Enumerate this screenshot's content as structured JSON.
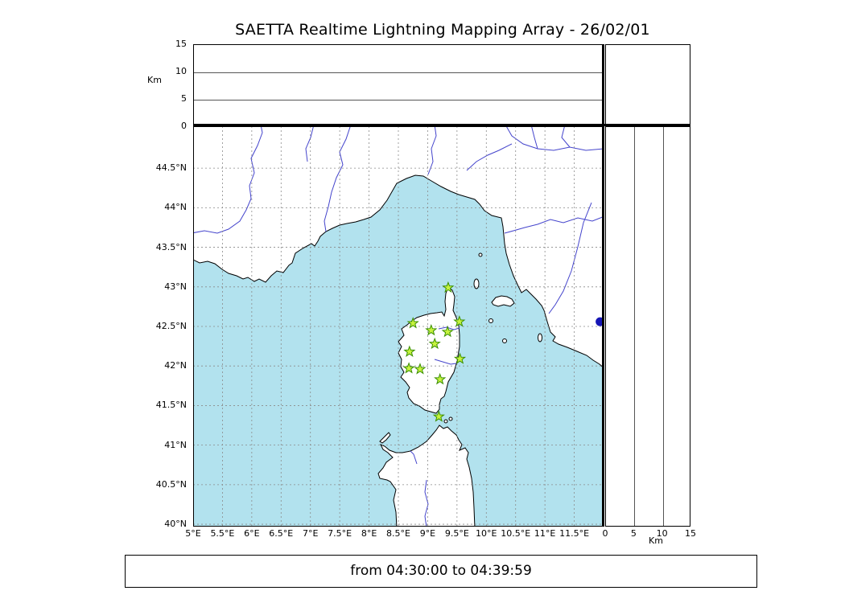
{
  "title": "SAETTA Realtime Lightning Mapping Array - 26/02/01",
  "footer": {
    "time_range": "from 04:30:00 to 04:39:59"
  },
  "axes": {
    "altitude_label_top": "Km",
    "altitude_label_right": "Km",
    "altitude_ticks": [
      "0",
      "5",
      "10",
      "15"
    ],
    "altitude_tick_values": [
      0,
      5,
      10,
      15
    ],
    "altitude_gridline_values": [
      5,
      10
    ],
    "lat_tick_labels": [
      "44.5°N",
      "44°N",
      "43.5°N",
      "43°N",
      "42.5°N",
      "42°N",
      "41.5°N",
      "41°N",
      "40.5°N",
      "40°N"
    ],
    "lat_tick_values": [
      44.5,
      44,
      43.5,
      43,
      42.5,
      42,
      41.5,
      41,
      40.5,
      40
    ],
    "lon_tick_labels": [
      "5°E",
      "5.5°E",
      "6°E",
      "6.5°E",
      "7°E",
      "7.5°E",
      "8°E",
      "8.5°E",
      "9°E",
      "9.5°E",
      "10°E",
      "10.5°E",
      "11°E",
      "11.5°E"
    ],
    "lon_tick_values": [
      5,
      5.5,
      6,
      6.5,
      7,
      7.5,
      8,
      8.5,
      9,
      9.5,
      10,
      10.5,
      11,
      11.5
    ]
  },
  "chart_data": {
    "type": "scatter",
    "title": "SAETTA Realtime Lightning Mapping Array - 26/02/01",
    "subtitle": "from 04:30:00 to 04:39:59",
    "layout": "LMA composite: altitude-longitude panel on top, plan-view map in center, altitude-latitude panel on right, altitude histogram box in top-right corner; dashed 0.5-degree graticule on the map",
    "map": {
      "lon_range": [
        5,
        12
      ],
      "lat_range": [
        39.97,
        45.03
      ],
      "region": "Corsica, northern Sardinia, Ligurian Sea, southern France and west Italian coast"
    },
    "altitude_axis": {
      "label": "Km",
      "range": [
        0,
        15
      ],
      "ticks": [
        0,
        5,
        10,
        15
      ],
      "gridlines": [
        5,
        10
      ]
    },
    "stations": [
      {
        "lon": 9.35,
        "lat": 42.99
      },
      {
        "lon": 9.54,
        "lat": 42.56
      },
      {
        "lon": 8.75,
        "lat": 42.54
      },
      {
        "lon": 9.06,
        "lat": 42.45
      },
      {
        "lon": 9.34,
        "lat": 42.43
      },
      {
        "lon": 9.12,
        "lat": 42.28
      },
      {
        "lon": 8.69,
        "lat": 42.18
      },
      {
        "lon": 9.55,
        "lat": 42.09
      },
      {
        "lon": 8.68,
        "lat": 41.97
      },
      {
        "lon": 8.87,
        "lat": 41.96
      },
      {
        "lon": 9.21,
        "lat": 41.83
      },
      {
        "lon": 9.19,
        "lat": 41.36
      }
    ],
    "event_marker": {
      "lon": 11.94,
      "lat": 42.56
    },
    "lightning_sources": [],
    "colors": {
      "sea": "#b2e2ee",
      "land": "#ffffff",
      "coast": "#000000",
      "river": "#4444cc",
      "grid": "#8a8a8a",
      "station_fill": "#c6f23e",
      "station_stroke": "#3a8f00",
      "event": "#1515b5"
    }
  }
}
